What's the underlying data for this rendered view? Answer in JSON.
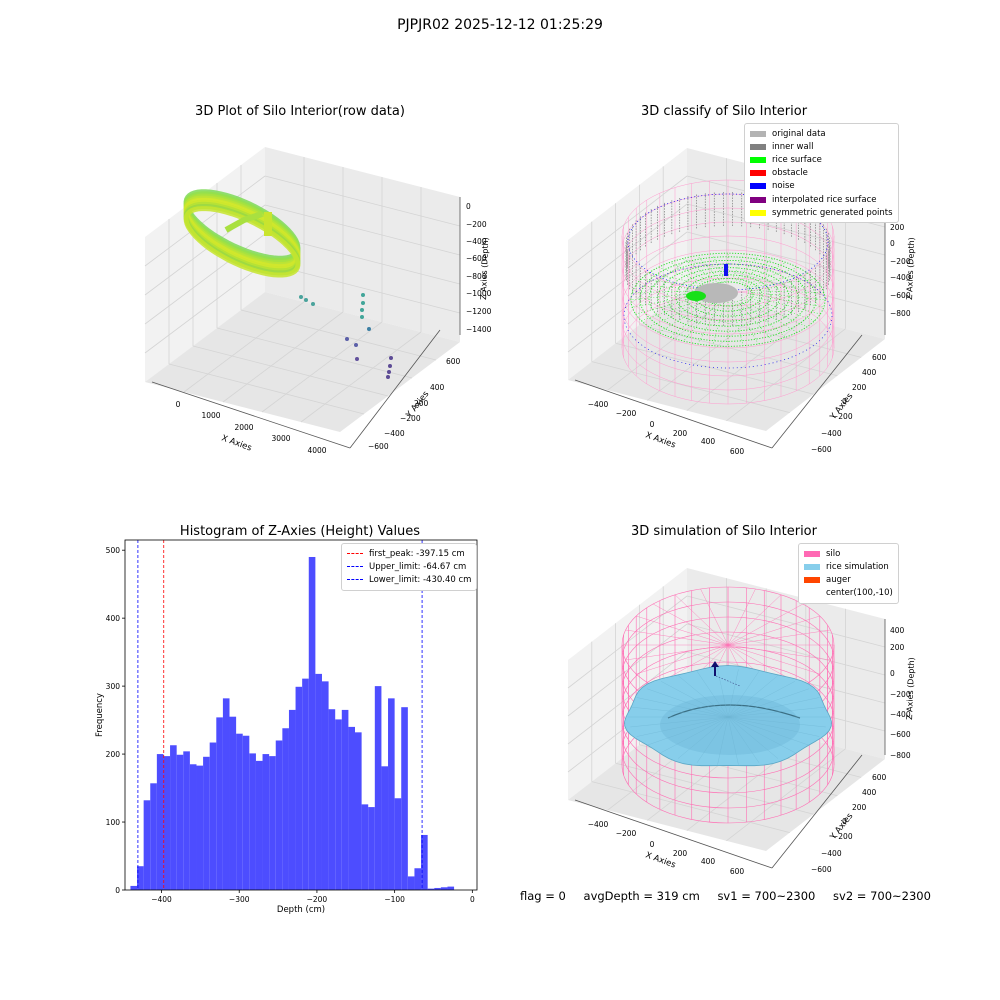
{
  "figure": {
    "suptitle": "PJPJR02 2025-12-12 01:25:29"
  },
  "panels": {
    "top_left": {
      "title": "3D Plot of Silo Interior(row data)",
      "xlabel": "X Axies",
      "ylabel": "Y Axies",
      "zlabel": "Z Axies (Depth)",
      "x_ticks": [
        "0",
        "1000",
        "2000",
        "3000",
        "4000"
      ],
      "y_ticks": [
        "600",
        "400",
        "200",
        "−200",
        "−400",
        "−600"
      ],
      "z_ticks": [
        "0",
        "−200",
        "−400",
        "−600",
        "−800",
        "−1000",
        "−1200",
        "−1400"
      ]
    },
    "top_right": {
      "title": "3D classify of Silo Interior",
      "xlabel": "X Axies",
      "ylabel": "Y Axies",
      "zlabel": "Z Axies (Depth)",
      "x_ticks": [
        "−400",
        "−200",
        "0",
        "200",
        "400",
        "600"
      ],
      "y_ticks": [
        "600",
        "400",
        "200",
        "0",
        "−200",
        "−400",
        "−600"
      ],
      "z_ticks": [
        "200",
        "0",
        "−200",
        "−400",
        "−600",
        "−800"
      ],
      "legend": [
        {
          "label": "original data",
          "color": "#b3b3b3"
        },
        {
          "label": "inner wall",
          "color": "#808080"
        },
        {
          "label": "rice surface",
          "color": "#00ff00"
        },
        {
          "label": "obstacle",
          "color": "#ff0000"
        },
        {
          "label": "noise",
          "color": "#0000ff"
        },
        {
          "label": "interpolated rice surface",
          "color": "#800080"
        },
        {
          "label": "symmetric generated points",
          "color": "#ffff00"
        }
      ]
    },
    "bottom_right": {
      "title": "3D simulation of Silo Interior",
      "xlabel": "X Axies",
      "ylabel": "Y Axies",
      "zlabel": "Z Axies (Depth)",
      "x_ticks": [
        "−400",
        "−200",
        "0",
        "200",
        "400",
        "600"
      ],
      "y_ticks": [
        "600",
        "400",
        "200",
        "0",
        "−200",
        "−400",
        "−600"
      ],
      "z_ticks": [
        "400",
        "200",
        "0",
        "−200",
        "−400",
        "−600",
        "−800"
      ],
      "legend": [
        {
          "label": "silo",
          "color": "#ff69b4"
        },
        {
          "label": "rice simulation",
          "color": "#87ceeb"
        },
        {
          "label": "auger",
          "color": "#ff4500"
        },
        {
          "label": "center(100,-10)",
          "color": ""
        }
      ]
    }
  },
  "chart_data": {
    "type": "bar",
    "title": "Histogram of Z-Axies (Height) Values",
    "xlabel": "Depth (cm)",
    "ylabel": "Frequency",
    "xlim": [
      -447,
      6
    ],
    "ylim": [
      0,
      515
    ],
    "x_ticks": [
      -400,
      -300,
      -200,
      -100,
      0
    ],
    "y_ticks": [
      0,
      100,
      200,
      300,
      400,
      500
    ],
    "bar_color": "#4d4dff",
    "bins_start": -440,
    "bin_width": 8.5,
    "values": [
      6,
      35,
      132,
      157,
      200,
      197,
      213,
      199,
      204,
      185,
      183,
      196,
      217,
      254,
      282,
      255,
      230,
      227,
      201,
      190,
      200,
      197,
      220,
      238,
      265,
      299,
      311,
      490,
      318,
      307,
      266,
      251,
      265,
      240,
      232,
      126,
      122,
      300,
      182,
      282,
      135,
      269,
      20,
      32,
      81,
      2,
      3,
      4,
      5
    ],
    "vlines": [
      {
        "label": "first_peak: -397.15 cm",
        "x": -397.15,
        "color": "#ff0000"
      },
      {
        "label": "Upper_limit: -64.67 cm",
        "x": -64.67,
        "color": "#0000ff"
      },
      {
        "label": "Lower_limit: -430.40 cm",
        "x": -430.4,
        "color": "#0000ff"
      }
    ],
    "legend_position": "top-right"
  },
  "footer": {
    "flag": "flag = 0",
    "avg_depth": "avgDepth = 319 cm",
    "sv1": "sv1 = 700~2300",
    "sv2": "sv2 = 700~2300"
  }
}
